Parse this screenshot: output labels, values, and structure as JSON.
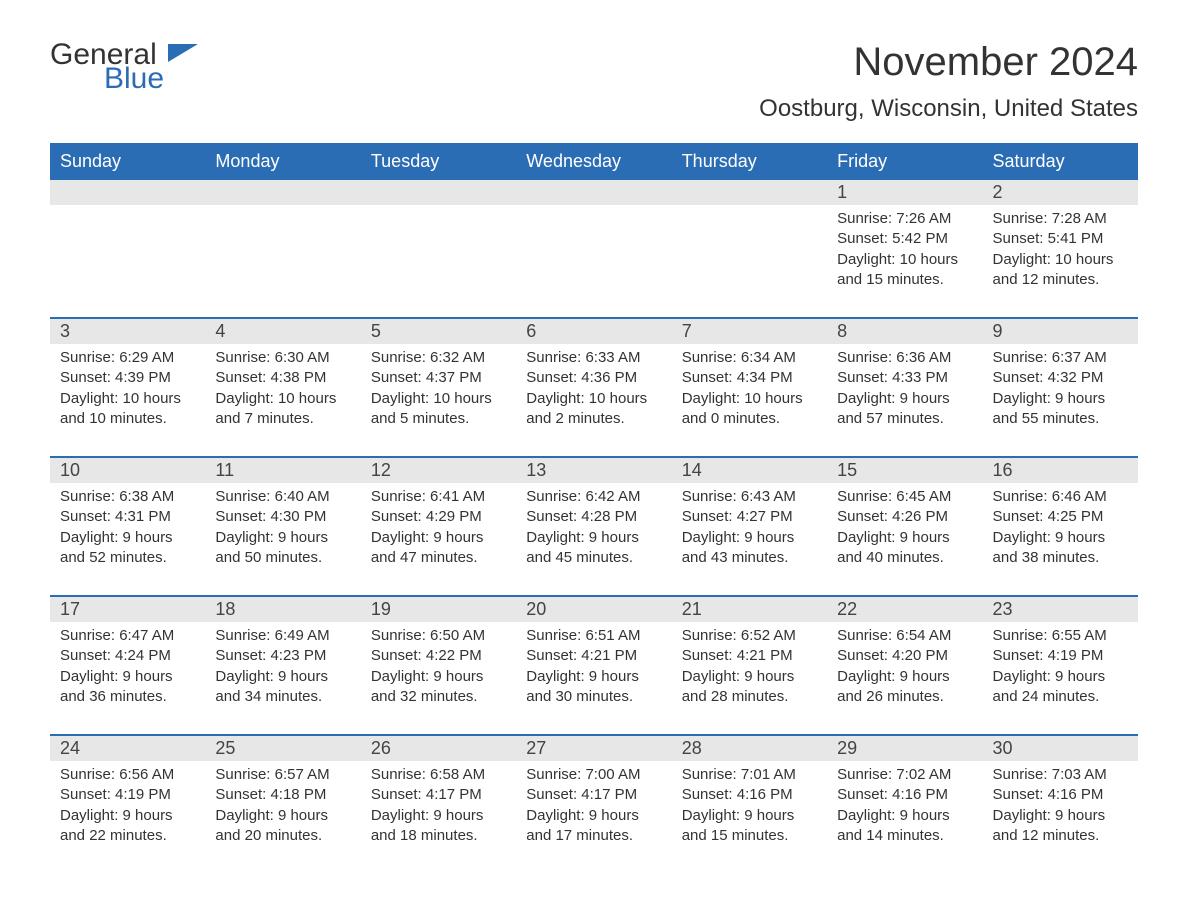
{
  "brand": {
    "word1": "General",
    "word2": "Blue"
  },
  "title": "November 2024",
  "location": "Oostburg, Wisconsin, United States",
  "colors": {
    "header_bg": "#2a6db5",
    "header_text": "#ffffff",
    "daynum_bg": "#e7e7e7",
    "text": "#333333",
    "brand_blue": "#2a6db5",
    "page_bg": "#ffffff"
  },
  "daysOfWeek": [
    "Sunday",
    "Monday",
    "Tuesday",
    "Wednesday",
    "Thursday",
    "Friday",
    "Saturday"
  ],
  "weeks": [
    [
      null,
      null,
      null,
      null,
      null,
      {
        "n": "1",
        "sunrise": "7:26 AM",
        "sunset": "5:42 PM",
        "daylight": "10 hours and 15 minutes."
      },
      {
        "n": "2",
        "sunrise": "7:28 AM",
        "sunset": "5:41 PM",
        "daylight": "10 hours and 12 minutes."
      }
    ],
    [
      {
        "n": "3",
        "sunrise": "6:29 AM",
        "sunset": "4:39 PM",
        "daylight": "10 hours and 10 minutes."
      },
      {
        "n": "4",
        "sunrise": "6:30 AM",
        "sunset": "4:38 PM",
        "daylight": "10 hours and 7 minutes."
      },
      {
        "n": "5",
        "sunrise": "6:32 AM",
        "sunset": "4:37 PM",
        "daylight": "10 hours and 5 minutes."
      },
      {
        "n": "6",
        "sunrise": "6:33 AM",
        "sunset": "4:36 PM",
        "daylight": "10 hours and 2 minutes."
      },
      {
        "n": "7",
        "sunrise": "6:34 AM",
        "sunset": "4:34 PM",
        "daylight": "10 hours and 0 minutes."
      },
      {
        "n": "8",
        "sunrise": "6:36 AM",
        "sunset": "4:33 PM",
        "daylight": "9 hours and 57 minutes."
      },
      {
        "n": "9",
        "sunrise": "6:37 AM",
        "sunset": "4:32 PM",
        "daylight": "9 hours and 55 minutes."
      }
    ],
    [
      {
        "n": "10",
        "sunrise": "6:38 AM",
        "sunset": "4:31 PM",
        "daylight": "9 hours and 52 minutes."
      },
      {
        "n": "11",
        "sunrise": "6:40 AM",
        "sunset": "4:30 PM",
        "daylight": "9 hours and 50 minutes."
      },
      {
        "n": "12",
        "sunrise": "6:41 AM",
        "sunset": "4:29 PM",
        "daylight": "9 hours and 47 minutes."
      },
      {
        "n": "13",
        "sunrise": "6:42 AM",
        "sunset": "4:28 PM",
        "daylight": "9 hours and 45 minutes."
      },
      {
        "n": "14",
        "sunrise": "6:43 AM",
        "sunset": "4:27 PM",
        "daylight": "9 hours and 43 minutes."
      },
      {
        "n": "15",
        "sunrise": "6:45 AM",
        "sunset": "4:26 PM",
        "daylight": "9 hours and 40 minutes."
      },
      {
        "n": "16",
        "sunrise": "6:46 AM",
        "sunset": "4:25 PM",
        "daylight": "9 hours and 38 minutes."
      }
    ],
    [
      {
        "n": "17",
        "sunrise": "6:47 AM",
        "sunset": "4:24 PM",
        "daylight": "9 hours and 36 minutes."
      },
      {
        "n": "18",
        "sunrise": "6:49 AM",
        "sunset": "4:23 PM",
        "daylight": "9 hours and 34 minutes."
      },
      {
        "n": "19",
        "sunrise": "6:50 AM",
        "sunset": "4:22 PM",
        "daylight": "9 hours and 32 minutes."
      },
      {
        "n": "20",
        "sunrise": "6:51 AM",
        "sunset": "4:21 PM",
        "daylight": "9 hours and 30 minutes."
      },
      {
        "n": "21",
        "sunrise": "6:52 AM",
        "sunset": "4:21 PM",
        "daylight": "9 hours and 28 minutes."
      },
      {
        "n": "22",
        "sunrise": "6:54 AM",
        "sunset": "4:20 PM",
        "daylight": "9 hours and 26 minutes."
      },
      {
        "n": "23",
        "sunrise": "6:55 AM",
        "sunset": "4:19 PM",
        "daylight": "9 hours and 24 minutes."
      }
    ],
    [
      {
        "n": "24",
        "sunrise": "6:56 AM",
        "sunset": "4:19 PM",
        "daylight": "9 hours and 22 minutes."
      },
      {
        "n": "25",
        "sunrise": "6:57 AM",
        "sunset": "4:18 PM",
        "daylight": "9 hours and 20 minutes."
      },
      {
        "n": "26",
        "sunrise": "6:58 AM",
        "sunset": "4:17 PM",
        "daylight": "9 hours and 18 minutes."
      },
      {
        "n": "27",
        "sunrise": "7:00 AM",
        "sunset": "4:17 PM",
        "daylight": "9 hours and 17 minutes."
      },
      {
        "n": "28",
        "sunrise": "7:01 AM",
        "sunset": "4:16 PM",
        "daylight": "9 hours and 15 minutes."
      },
      {
        "n": "29",
        "sunrise": "7:02 AM",
        "sunset": "4:16 PM",
        "daylight": "9 hours and 14 minutes."
      },
      {
        "n": "30",
        "sunrise": "7:03 AM",
        "sunset": "4:16 PM",
        "daylight": "9 hours and 12 minutes."
      }
    ]
  ],
  "labels": {
    "sunrise": "Sunrise: ",
    "sunset": "Sunset: ",
    "daylight": "Daylight: "
  }
}
